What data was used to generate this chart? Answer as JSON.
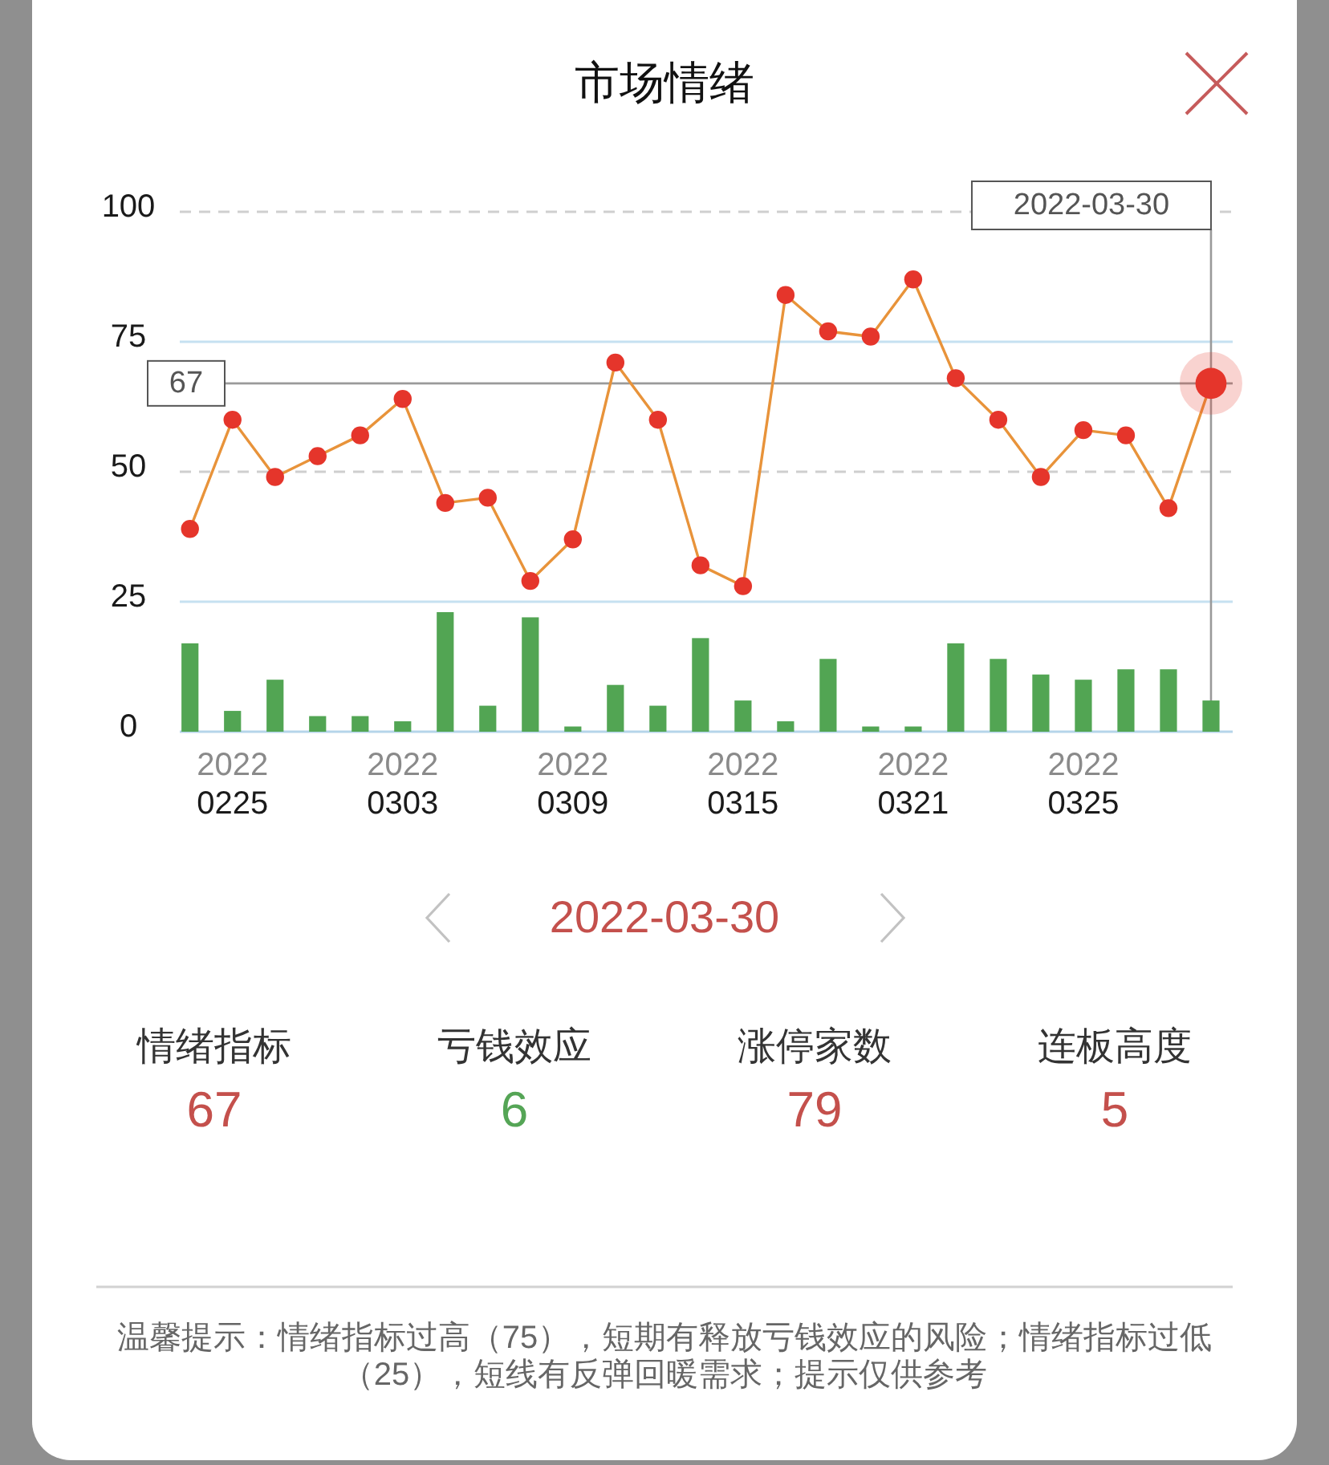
{
  "chart_data": [
    {
      "type": "line",
      "title": "市场情绪",
      "categories": [
        null,
        "2022\n0225",
        null,
        null,
        null,
        "2022\n0303",
        null,
        null,
        null,
        "2022\n0309",
        null,
        null,
        null,
        "2022\n0315",
        null,
        null,
        null,
        "2022\n0321",
        null,
        null,
        null,
        "2022\n0325",
        null,
        null,
        null
      ],
      "series": [
        {
          "type": "bar",
          "color": "#52a553",
          "values": [
            17,
            4,
            10,
            3,
            3,
            2,
            23,
            5,
            22,
            1,
            9,
            5,
            18,
            6,
            2,
            14,
            1,
            1,
            17,
            14,
            11,
            10,
            12,
            12,
            6
          ]
        },
        {
          "type": "line",
          "color": "#e8933a",
          "marker": "circle",
          "colors": [
            "#e5352b",
            "#e5352b",
            "#e5352b",
            "#e5352b",
            "#e5352b",
            "#e5352b",
            "#e5352b",
            "#e5352b",
            "#e5352b",
            "#e5352b",
            "#e5352b",
            "#e5352b",
            "#e5352b",
            "#e5352b",
            "#e5352b",
            "#e5352b",
            "#e5352b",
            "#e5352b",
            "#e5352b",
            "#e5352b",
            "#e5352b",
            "#e5352b",
            "#e5352b",
            "#e5352b",
            "#e5352b"
          ],
          "values": [
            39,
            60,
            49,
            53,
            57,
            64,
            44,
            45,
            29,
            37,
            71,
            60,
            32,
            28,
            84,
            77,
            76,
            87,
            68,
            60,
            49,
            58,
            57,
            43,
            67
          ]
        },
        {
          "type": "scatter",
          "color": "#e5352b",
          "values": [
            null,
            null,
            null,
            null,
            null,
            null,
            null,
            null,
            null,
            null,
            null,
            null,
            null,
            null,
            null,
            null,
            null,
            null,
            null,
            null,
            null,
            null,
            null,
            null,
            67
          ]
        }
      ],
      "ylim": [
        0,
        100
      ],
      "yticks": [
        0,
        25,
        50,
        75,
        100
      ],
      "ref_lines": [
        {
          "axis": "y",
          "value": 100,
          "color": "#cfcfcf",
          "line_style": "dashed"
        },
        {
          "axis": "y",
          "value": 50,
          "color": "#cfcfcf",
          "line_style": "dashed"
        },
        {
          "axis": "y",
          "value": 75,
          "color": "#c6e1f1"
        },
        {
          "axis": "y",
          "value": 25,
          "color": "#c6e1f1"
        },
        {
          "axis": "y",
          "value": 67,
          "label": "67",
          "color": "#9a9a9a"
        }
      ],
      "annotations": [
        "2022-03-30"
      ]
    },
    {
      "type": "other",
      "title": "2022-03-30",
      "categories": [
        "情绪指标",
        "亏钱效应",
        "涨停家数",
        "连板高度"
      ],
      "values": [
        67,
        6,
        79,
        5
      ],
      "colors": [
        "#c4504c",
        "#55a556",
        "#c4504c",
        "#c4504c"
      ],
      "data_labels": true,
      "annotations": [
        "温馨提示：情绪指标过高（75），短期有释放亏钱效应的风险；情绪指标过低（25），短线有反弹回暖需求；提示仅供参考"
      ]
    }
  ]
}
